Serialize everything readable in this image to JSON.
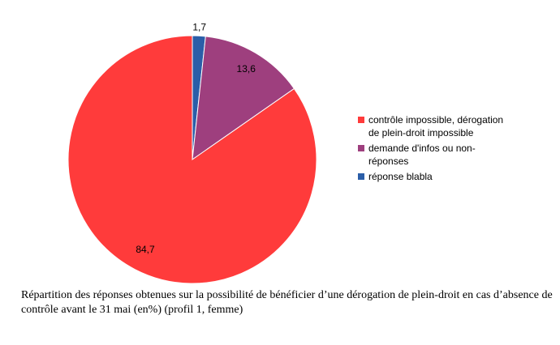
{
  "chart_data": {
    "type": "pie",
    "categories": [
      "contrôle impossible, dérogation de plein-droit impossible",
      "demande d'infos ou non-réponses",
      "réponse blabla"
    ],
    "legend_lines": [
      [
        "contrôle impossible, dérogation",
        "de plein-droit impossible"
      ],
      [
        "demande d'infos ou non-",
        "réponses"
      ],
      [
        "réponse blabla"
      ]
    ],
    "values": [
      84.7,
      13.6,
      1.7
    ],
    "data_labels": [
      "84,7",
      "13,6",
      "1,7"
    ],
    "colors": [
      "#ff3b3b",
      "#9e3f7e",
      "#2b5ea8"
    ],
    "legend_position": "right",
    "caption": "Répartition des réponses obtenues sur la possibilité de bénéficier d’une dérogation de plein-droit en cas d’absence de contrôle avant le 31 mai (en%) (profil 1, femme)"
  }
}
